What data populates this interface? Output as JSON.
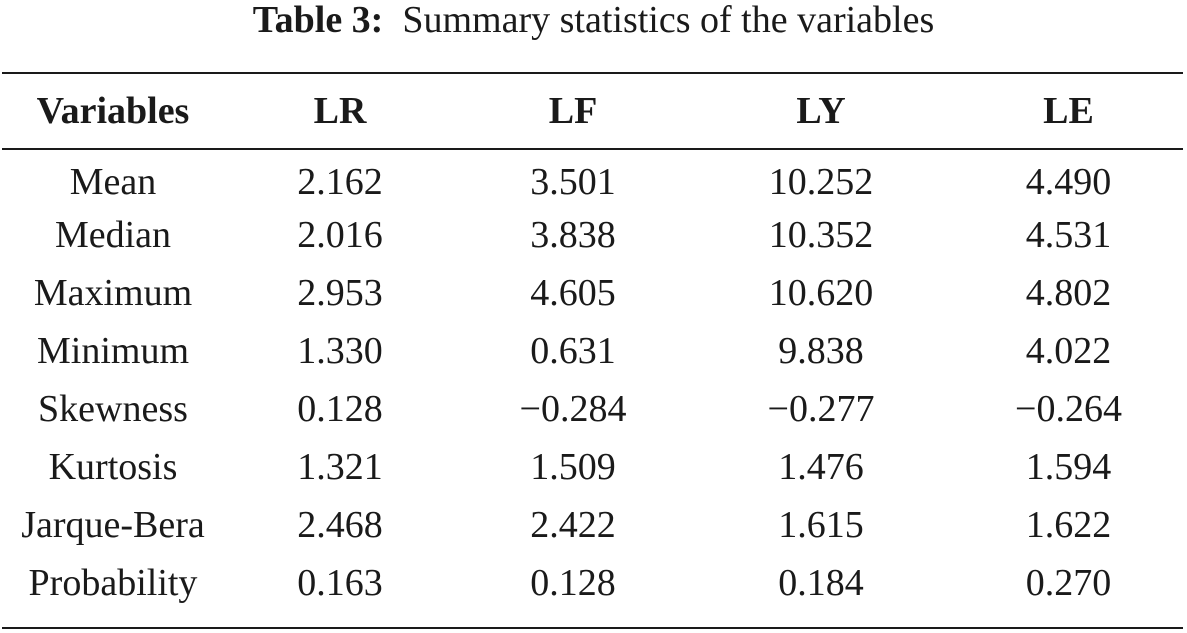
{
  "caption": {
    "label": "Table 3:",
    "title": "Summary statistics of the variables"
  },
  "table": {
    "headers": [
      "Variables",
      "LR",
      "LF",
      "LY",
      "LE"
    ],
    "rows": [
      {
        "label": "Mean",
        "values": [
          "2.162",
          "3.501",
          "10.252",
          "4.490"
        ]
      },
      {
        "label": "Median",
        "values": [
          "2.016",
          "3.838",
          "10.352",
          "4.531"
        ]
      },
      {
        "label": "Maximum",
        "values": [
          "2.953",
          "4.605",
          "10.620",
          "4.802"
        ]
      },
      {
        "label": "Minimum",
        "values": [
          "1.330",
          "0.631",
          "9.838",
          "4.022"
        ]
      },
      {
        "label": "Skewness",
        "values": [
          "0.128",
          "−0.284",
          "−0.277",
          "−0.264"
        ]
      },
      {
        "label": "Kurtosis",
        "values": [
          "1.321",
          "1.509",
          "1.476",
          "1.594"
        ]
      },
      {
        "label": "Jarque-Bera",
        "values": [
          "2.468",
          "2.422",
          "1.615",
          "1.622"
        ]
      },
      {
        "label": "Probability",
        "values": [
          "0.163",
          "0.128",
          "0.184",
          "0.270"
        ]
      }
    ]
  }
}
